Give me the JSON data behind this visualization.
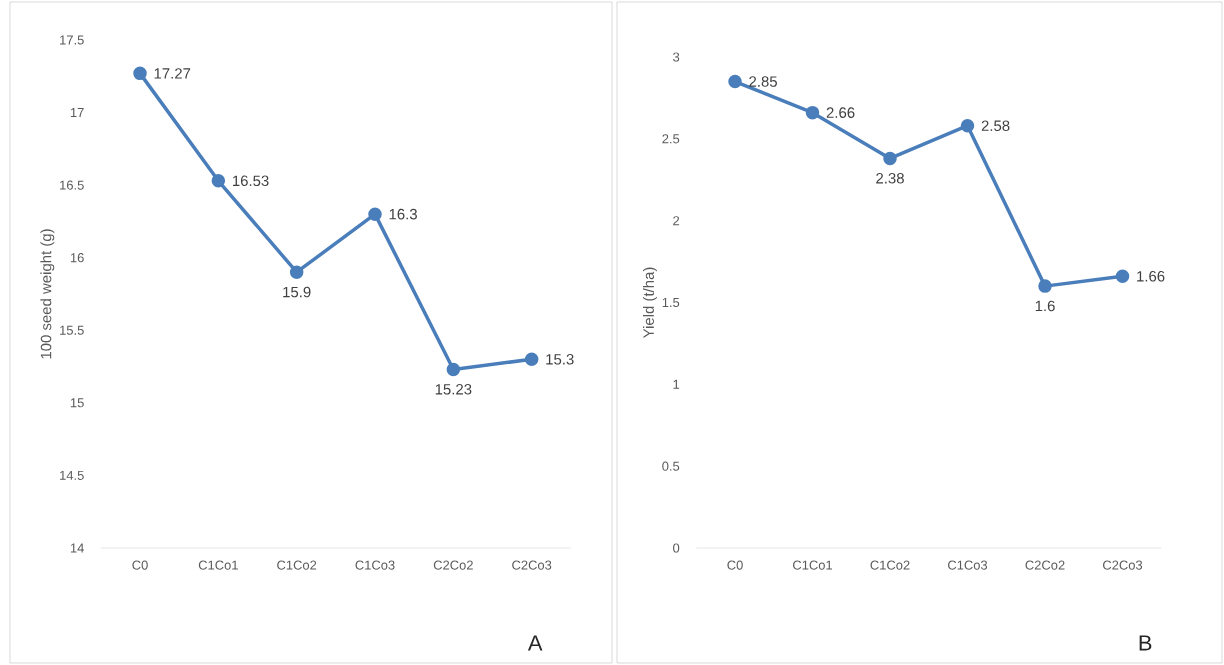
{
  "chart_data": [
    {
      "type": "line",
      "ylabel": "100 seed weight (g)",
      "categories": [
        "C0",
        "C1Co1",
        "C1Co2",
        "C1Co3",
        "C2Co2",
        "C2Co3"
      ],
      "values": [
        17.27,
        16.53,
        15.9,
        16.3,
        15.23,
        15.3
      ],
      "color": "#4a7ebb",
      "marker": "circle",
      "data_labels": true,
      "ylim": [
        14,
        17.5
      ],
      "yticks": [
        14,
        14.5,
        15,
        15.5,
        16,
        16.5,
        17,
        17.5
      ],
      "grid": false,
      "annotations": [
        "A"
      ]
    },
    {
      "type": "line",
      "ylabel": "Yield (t/ha)",
      "categories": [
        "C0",
        "C1Co1",
        "C1Co2",
        "C1Co3",
        "C2Co2",
        "C2Co3"
      ],
      "values": [
        2.85,
        2.66,
        2.38,
        2.58,
        1.6,
        1.66
      ],
      "color": "#4a7ebb",
      "marker": "circle",
      "data_labels": true,
      "ylim": [
        0,
        3
      ],
      "yticks": [
        0,
        0.5,
        1,
        1.5,
        2,
        2.5,
        3
      ],
      "grid": false,
      "annotations": [
        "B"
      ]
    }
  ]
}
